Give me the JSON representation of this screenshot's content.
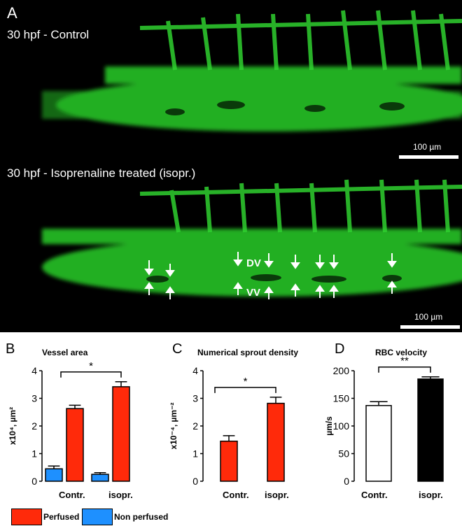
{
  "panelA": {
    "letter": "A",
    "label_top": "30 hpf - Control",
    "label_bottom": "30 hpf - Isoprenaline treated (isopr.)",
    "scalebar": "100 µm",
    "vessel_labels": {
      "dv": "DV",
      "vv": "VV"
    },
    "image_colors": {
      "vessel": "#2fd12f",
      "background": "#000000"
    }
  },
  "chart_data": [
    {
      "letter": "B",
      "type": "bar",
      "title": "Vessel area",
      "ylabel": "x10⁴, µm²",
      "ylim": [
        0,
        4
      ],
      "yticks": [
        "0",
        "1",
        "2",
        "3",
        "4"
      ],
      "categories": [
        "Contr.",
        "isopr."
      ],
      "series": [
        {
          "name": "Non perfused",
          "color": "#1e90ff",
          "values": [
            0.45,
            0.25
          ],
          "errors": [
            0.1,
            0.06
          ]
        },
        {
          "name": "Perfused",
          "color": "#ff2a0a",
          "values": [
            2.63,
            3.42
          ],
          "errors": [
            0.12,
            0.18
          ]
        }
      ],
      "significance": {
        "between": [
          "Contr.",
          "isopr."
        ],
        "series": "Perfused",
        "label": "*"
      }
    },
    {
      "letter": "C",
      "type": "bar",
      "title": "Numerical sprout density",
      "ylabel": "x10⁻⁴, µm⁻²",
      "ylim": [
        0,
        4
      ],
      "yticks": [
        "0",
        "1",
        "2",
        "3",
        "4"
      ],
      "categories": [
        "Contr.",
        "isopr."
      ],
      "series": [
        {
          "name": "Perfused",
          "color": "#ff2a0a",
          "values": [
            1.45,
            2.82
          ],
          "errors": [
            0.2,
            0.22
          ]
        }
      ],
      "significance": {
        "between": [
          "Contr.",
          "isopr."
        ],
        "label": "*"
      }
    },
    {
      "letter": "D",
      "type": "bar",
      "title": "RBC velocity",
      "ylabel": "µm/s",
      "ylim": [
        0,
        200
      ],
      "yticks": [
        "0",
        "50",
        "100",
        "150",
        "200"
      ],
      "categories": [
        "Contr.",
        "isopr."
      ],
      "values": [
        137,
        185
      ],
      "errors": [
        7,
        4
      ],
      "colors": [
        "#ffffff",
        "#000000"
      ],
      "significance": {
        "between": [
          "Contr.",
          "isopr."
        ],
        "label": "**"
      }
    }
  ],
  "legend": [
    {
      "label": "Perfused",
      "color": "#ff2a0a"
    },
    {
      "label": "Non perfused",
      "color": "#1e90ff"
    }
  ]
}
